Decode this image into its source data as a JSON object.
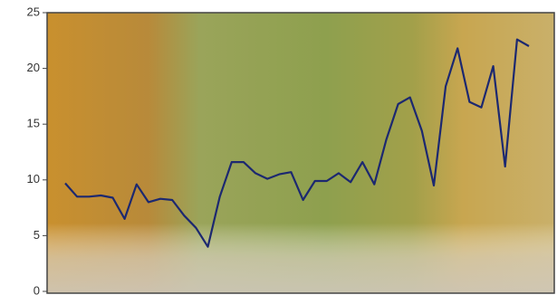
{
  "chart_data": {
    "type": "line",
    "values": [
      9.7,
      8.5,
      8.5,
      8.6,
      8.4,
      6.5,
      9.6,
      8.0,
      8.3,
      8.2,
      6.8,
      5.7,
      4.0,
      8.5,
      11.6,
      11.6,
      10.6,
      10.1,
      10.5,
      10.7,
      8.2,
      9.9,
      9.9,
      10.6,
      9.8,
      11.6,
      9.6,
      13.6,
      16.8,
      17.4,
      14.4,
      9.5,
      18.4,
      21.8,
      17.0,
      16.5,
      20.2,
      11.2,
      22.6,
      22.0
    ],
    "color": "#1c2870",
    "ylim": [
      0,
      25
    ],
    "yticks": [
      0,
      5,
      10,
      15,
      20,
      25
    ]
  }
}
